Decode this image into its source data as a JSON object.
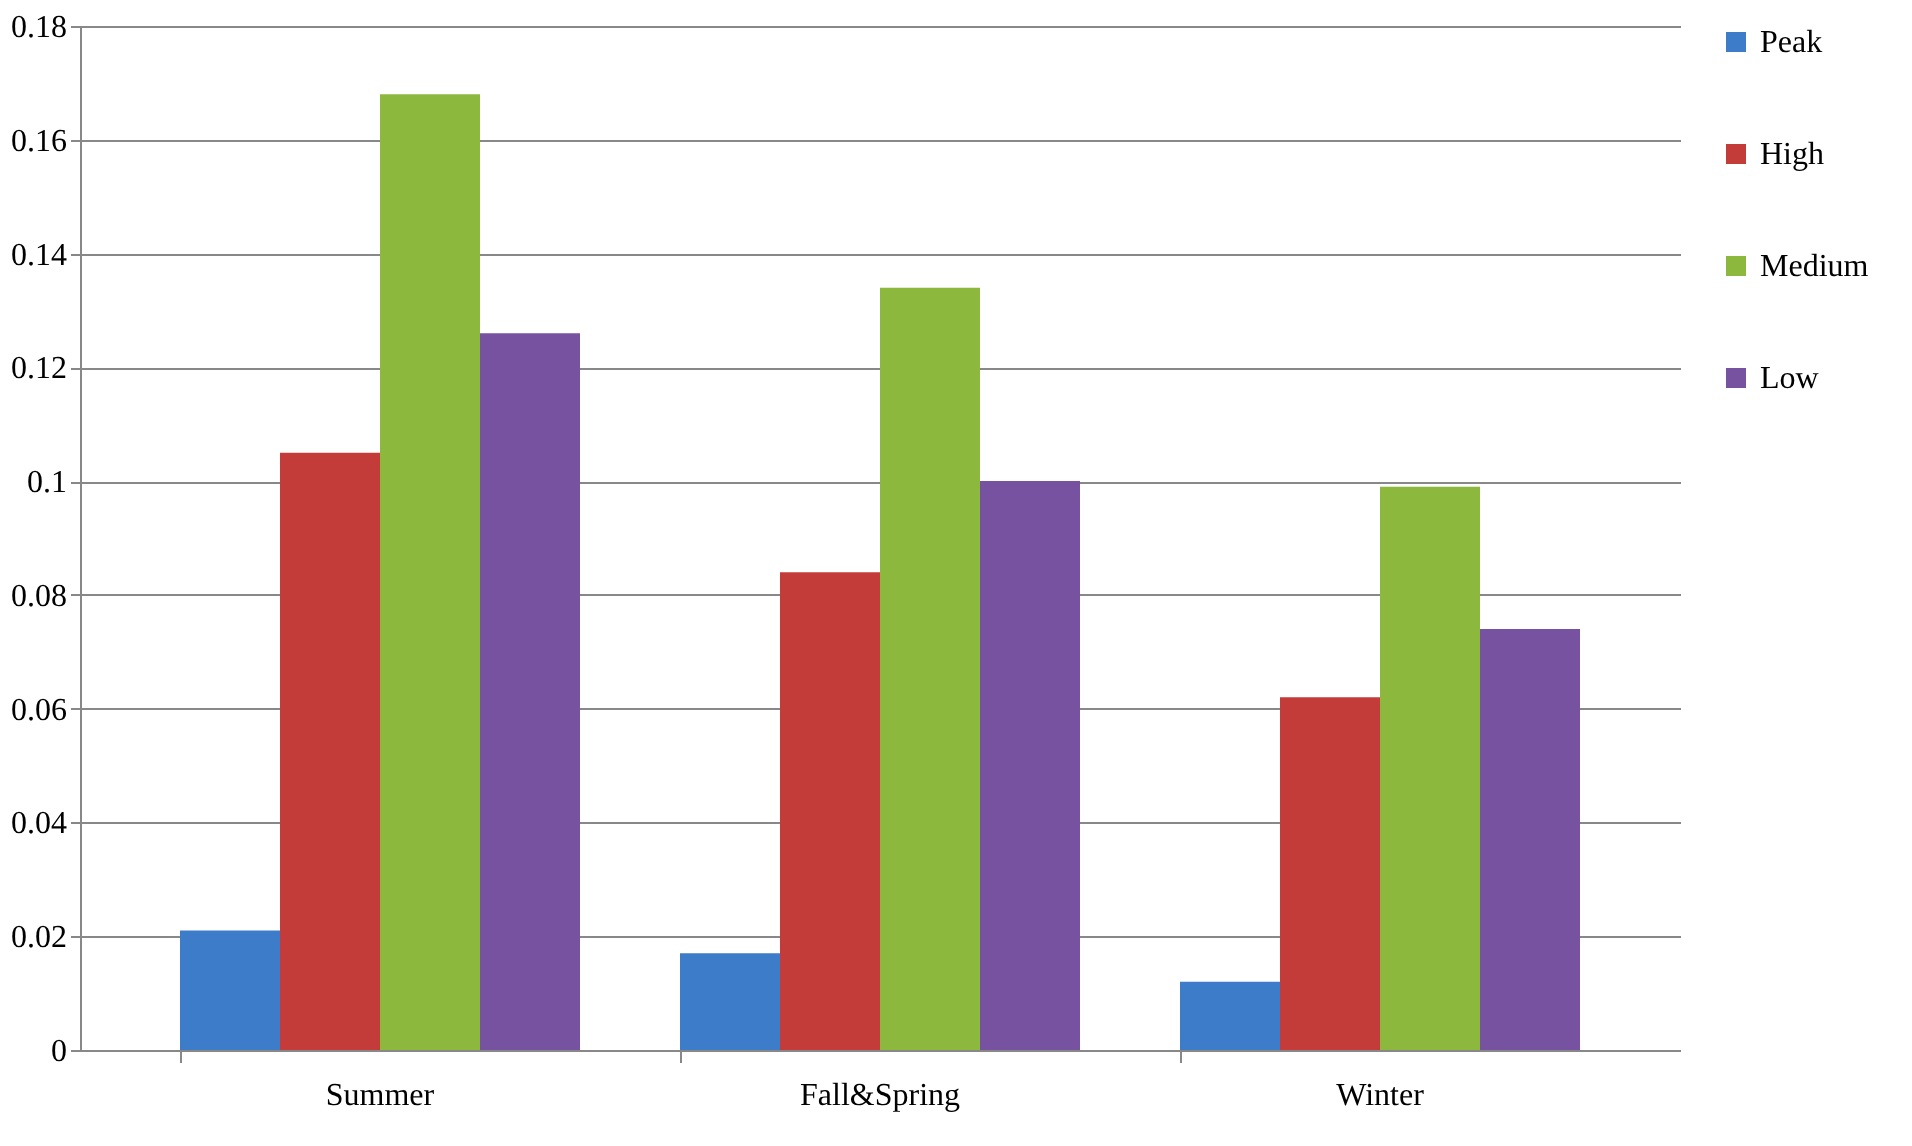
{
  "chart_data": {
    "type": "bar",
    "categories": [
      "Summer",
      "Fall&Spring",
      "Winter"
    ],
    "series": [
      {
        "name": "Peak",
        "color": "#3d7cc9",
        "values": [
          0.021,
          0.017,
          0.012
        ]
      },
      {
        "name": "High",
        "color": "#c43c3a",
        "values": [
          0.105,
          0.084,
          0.062
        ]
      },
      {
        "name": "Medium",
        "color": "#8cb83e",
        "values": [
          0.168,
          0.134,
          0.099
        ]
      },
      {
        "name": "Low",
        "color": "#7652a0",
        "values": [
          0.126,
          0.1,
          0.074
        ]
      }
    ],
    "ylim": [
      0,
      0.18
    ],
    "yticks": [
      0,
      0.02,
      0.04,
      0.06,
      0.08,
      0.1,
      0.12,
      0.14,
      0.16,
      0.18
    ],
    "grid": "y",
    "legend": "right"
  }
}
